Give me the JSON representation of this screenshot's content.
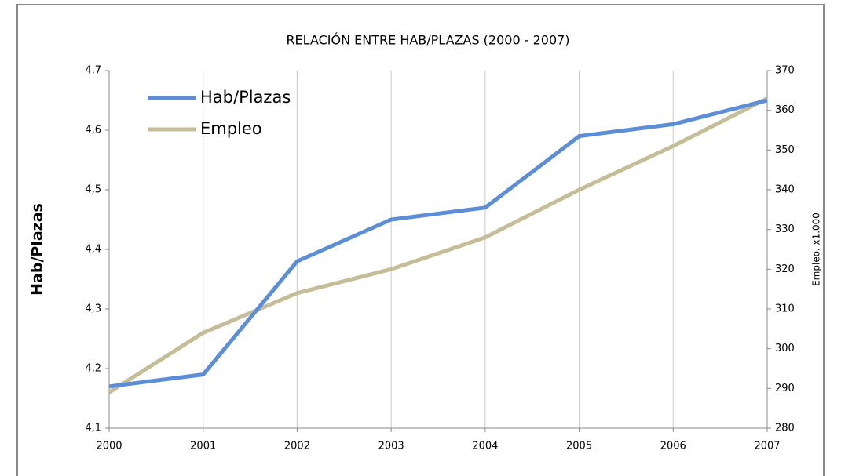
{
  "chart_data": {
    "type": "line",
    "title": "RELACIÓN ENTRE HAB/PLAZAS (2000 - 2007)",
    "y_label": "Hab/Plazas",
    "y2_label": "Empleo. x1.000",
    "x": [
      2000,
      2001,
      2002,
      2003,
      2004,
      2005,
      2006,
      2007
    ],
    "xlim": [
      2000,
      2007
    ],
    "xticks": [
      2000,
      2001,
      2002,
      2003,
      2004,
      2005,
      2006,
      2007
    ],
    "ylim": [
      4.1,
      4.7
    ],
    "yticks": [
      {
        "value": 4.1,
        "label": "4,1"
      },
      {
        "value": 4.2,
        "label": "4,2"
      },
      {
        "value": 4.3,
        "label": "4,3"
      },
      {
        "value": 4.4,
        "label": "4,4"
      },
      {
        "value": 4.5,
        "label": "4,5"
      },
      {
        "value": 4.6,
        "label": "4,6"
      },
      {
        "value": 4.7,
        "label": "4,7"
      }
    ],
    "y2lim": [
      280,
      370
    ],
    "y2ticks": [
      280,
      290,
      300,
      310,
      320,
      330,
      340,
      350,
      360,
      370
    ],
    "grid": "x",
    "legend": "upper left",
    "series": [
      {
        "name": "Hab/Plazas",
        "color": "#5b8ed6",
        "values": [
          4.17,
          4.19,
          4.38,
          4.45,
          4.47,
          4.59,
          4.61,
          4.65
        ]
      },
      {
        "name": "Empleo",
        "color": "#c4bd97",
        "axis": "y2",
        "values": [
          289,
          304,
          314,
          320,
          328,
          340,
          351,
          363
        ]
      }
    ]
  }
}
